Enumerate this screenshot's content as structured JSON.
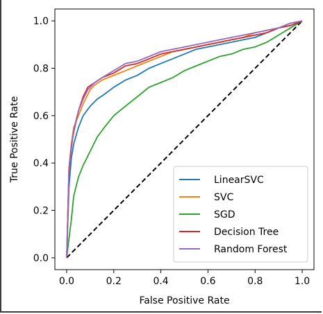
{
  "chart_data": {
    "type": "line",
    "title": "",
    "xlabel": "False Positive Rate",
    "ylabel": "True Positive Rate",
    "xlim": [
      -0.05,
      1.05
    ],
    "ylim": [
      -0.05,
      1.05
    ],
    "xticks": [
      0.0,
      0.2,
      0.4,
      0.6,
      0.8,
      1.0
    ],
    "yticks": [
      0.0,
      0.2,
      0.4,
      0.6,
      0.8,
      1.0
    ],
    "xtick_labels": [
      "0.0",
      "0.2",
      "0.4",
      "0.6",
      "0.8",
      "1.0"
    ],
    "ytick_labels": [
      "0.0",
      "0.2",
      "0.4",
      "0.6",
      "0.8",
      "1.0"
    ],
    "grid": false,
    "legend_position": "lower-right",
    "reference_line": {
      "style": "dashed",
      "color": "#000000",
      "x": [
        0,
        1
      ],
      "y": [
        0,
        1
      ]
    },
    "series": [
      {
        "name": "LinearSVC",
        "color": "#1f77b4",
        "x": [
          0,
          0.01,
          0.02,
          0.03,
          0.05,
          0.07,
          0.1,
          0.13,
          0.16,
          0.2,
          0.25,
          0.3,
          0.35,
          0.4,
          0.45,
          0.5,
          0.55,
          0.6,
          0.65,
          0.7,
          0.75,
          0.8,
          0.85,
          0.9,
          0.95,
          1.0
        ],
        "y": [
          0,
          0.3,
          0.42,
          0.48,
          0.55,
          0.6,
          0.64,
          0.67,
          0.69,
          0.72,
          0.75,
          0.77,
          0.8,
          0.82,
          0.84,
          0.86,
          0.88,
          0.89,
          0.9,
          0.91,
          0.92,
          0.93,
          0.95,
          0.97,
          0.98,
          1.0
        ]
      },
      {
        "name": "SVC",
        "color": "#ff7f0e",
        "x": [
          0,
          0.01,
          0.02,
          0.03,
          0.05,
          0.07,
          0.1,
          0.12,
          0.15,
          0.2,
          0.25,
          0.3,
          0.35,
          0.4,
          0.45,
          0.5,
          0.55,
          0.6,
          0.65,
          0.7,
          0.75,
          0.8,
          0.85,
          0.9,
          0.95,
          1.0
        ],
        "y": [
          0,
          0.38,
          0.48,
          0.55,
          0.6,
          0.65,
          0.71,
          0.73,
          0.75,
          0.77,
          0.79,
          0.81,
          0.83,
          0.85,
          0.87,
          0.88,
          0.89,
          0.9,
          0.91,
          0.92,
          0.93,
          0.95,
          0.96,
          0.97,
          0.99,
          1.0
        ]
      },
      {
        "name": "SGD",
        "color": "#2ca02c",
        "x": [
          0,
          0.01,
          0.02,
          0.03,
          0.05,
          0.07,
          0.1,
          0.13,
          0.16,
          0.2,
          0.25,
          0.3,
          0.35,
          0.4,
          0.45,
          0.5,
          0.55,
          0.6,
          0.65,
          0.7,
          0.75,
          0.8,
          0.85,
          0.9,
          0.95,
          1.0
        ],
        "y": [
          0,
          0.08,
          0.16,
          0.26,
          0.34,
          0.39,
          0.45,
          0.51,
          0.55,
          0.6,
          0.64,
          0.68,
          0.72,
          0.74,
          0.76,
          0.79,
          0.81,
          0.83,
          0.85,
          0.86,
          0.88,
          0.89,
          0.91,
          0.94,
          0.97,
          1.0
        ]
      },
      {
        "name": "Decision Tree",
        "color": "#d62728",
        "x": [
          0,
          0.01,
          0.02,
          0.03,
          0.05,
          0.07,
          0.09,
          0.12,
          0.15,
          0.2,
          0.25,
          0.3,
          0.35,
          0.4,
          0.45,
          0.5,
          0.55,
          0.6,
          0.65,
          0.7,
          0.75,
          0.8,
          0.85,
          0.9,
          0.95,
          1.0
        ],
        "y": [
          0,
          0.37,
          0.47,
          0.53,
          0.62,
          0.68,
          0.72,
          0.74,
          0.76,
          0.78,
          0.81,
          0.82,
          0.84,
          0.86,
          0.87,
          0.88,
          0.89,
          0.9,
          0.91,
          0.92,
          0.93,
          0.94,
          0.95,
          0.97,
          0.98,
          1.0
        ]
      },
      {
        "name": "Random Forest",
        "color": "#9467bd",
        "x": [
          0,
          0.01,
          0.02,
          0.03,
          0.05,
          0.07,
          0.09,
          0.12,
          0.15,
          0.2,
          0.25,
          0.3,
          0.35,
          0.4,
          0.45,
          0.5,
          0.55,
          0.6,
          0.65,
          0.7,
          0.75,
          0.8,
          0.85,
          0.9,
          0.95,
          1.0
        ],
        "y": [
          0,
          0.36,
          0.46,
          0.54,
          0.62,
          0.67,
          0.71,
          0.74,
          0.76,
          0.79,
          0.82,
          0.83,
          0.85,
          0.87,
          0.88,
          0.89,
          0.9,
          0.91,
          0.92,
          0.93,
          0.94,
          0.95,
          0.96,
          0.97,
          0.99,
          1.0
        ]
      }
    ]
  }
}
